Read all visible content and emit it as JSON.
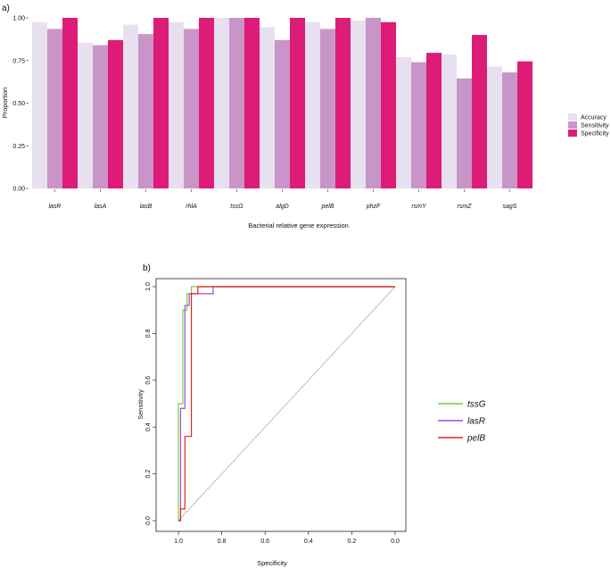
{
  "chart_data": [
    {
      "type": "bar",
      "panel_label": "a)",
      "title": "",
      "xlabel": "Bacterial relative gene expression",
      "ylabel": "Proportion",
      "ylim": [
        0,
        1
      ],
      "yticks": [
        "0.00",
        "0.25",
        "0.50",
        "0.75",
        "1.00"
      ],
      "categories": [
        "lasR",
        "lasA",
        "lasB",
        "rhlA",
        "tssG",
        "algD",
        "pelB",
        "phzF",
        "rsmY",
        "rsmZ",
        "sagS"
      ],
      "series": [
        {
          "name": "Accuracy",
          "color": "#e6e0ef",
          "values": [
            0.975,
            0.855,
            0.96,
            0.975,
            1.0,
            0.945,
            0.975,
            0.985,
            0.77,
            0.785,
            0.715
          ]
        },
        {
          "name": "Sensitivity",
          "color": "#c994c7",
          "values": [
            0.935,
            0.84,
            0.905,
            0.935,
            1.0,
            0.87,
            0.935,
            1.0,
            0.74,
            0.645,
            0.68
          ]
        },
        {
          "name": "Specificity",
          "color": "#dd1c77",
          "values": [
            1.0,
            0.87,
            1.0,
            1.0,
            1.0,
            1.0,
            1.0,
            0.975,
            0.795,
            0.9,
            0.745
          ]
        }
      ],
      "legend": "right"
    },
    {
      "type": "line",
      "panel_label": "b)",
      "title": "",
      "xlabel": "Specificity",
      "ylabel": "Sensitivity",
      "xlim": [
        1.05,
        0.0
      ],
      "ylim": [
        0,
        1
      ],
      "xticks": [
        "1.0",
        "0.8",
        "0.6",
        "0.4",
        "0.2",
        "0.0"
      ],
      "yticks": [
        "0.0",
        "0.2",
        "0.4",
        "0.6",
        "0.8",
        "1.0"
      ],
      "diagonal_color": "#999999",
      "series": [
        {
          "name": "tssG",
          "color": "#7ccd3a",
          "x": [
            1.0,
            1.0,
            0.98,
            0.98,
            0.96,
            0.96,
            0.94,
            0.94,
            0.0
          ],
          "y": [
            0.0,
            0.5,
            0.5,
            0.9,
            0.9,
            0.97,
            0.97,
            1.0,
            1.0
          ]
        },
        {
          "name": "lasR",
          "color": "#9a4fd6",
          "x": [
            1.0,
            0.99,
            0.99,
            0.97,
            0.97,
            0.95,
            0.95,
            0.93,
            0.93,
            0.88,
            0.88,
            0.84,
            0.84,
            0.0
          ],
          "y": [
            0.0,
            0.0,
            0.48,
            0.48,
            0.92,
            0.92,
            0.97,
            0.97,
            0.97,
            0.97,
            0.97,
            0.97,
            1.0,
            1.0
          ]
        },
        {
          "name": "pelB",
          "color": "#e8211d",
          "x": [
            1.0,
            0.99,
            0.99,
            0.97,
            0.97,
            0.94,
            0.94,
            0.91,
            0.91,
            0.86,
            0.86,
            0.0
          ],
          "y": [
            0.0,
            0.0,
            0.05,
            0.05,
            0.36,
            0.36,
            0.97,
            0.97,
            1.0,
            1.0,
            1.0,
            1.0
          ]
        }
      ],
      "legend": "right"
    }
  ]
}
